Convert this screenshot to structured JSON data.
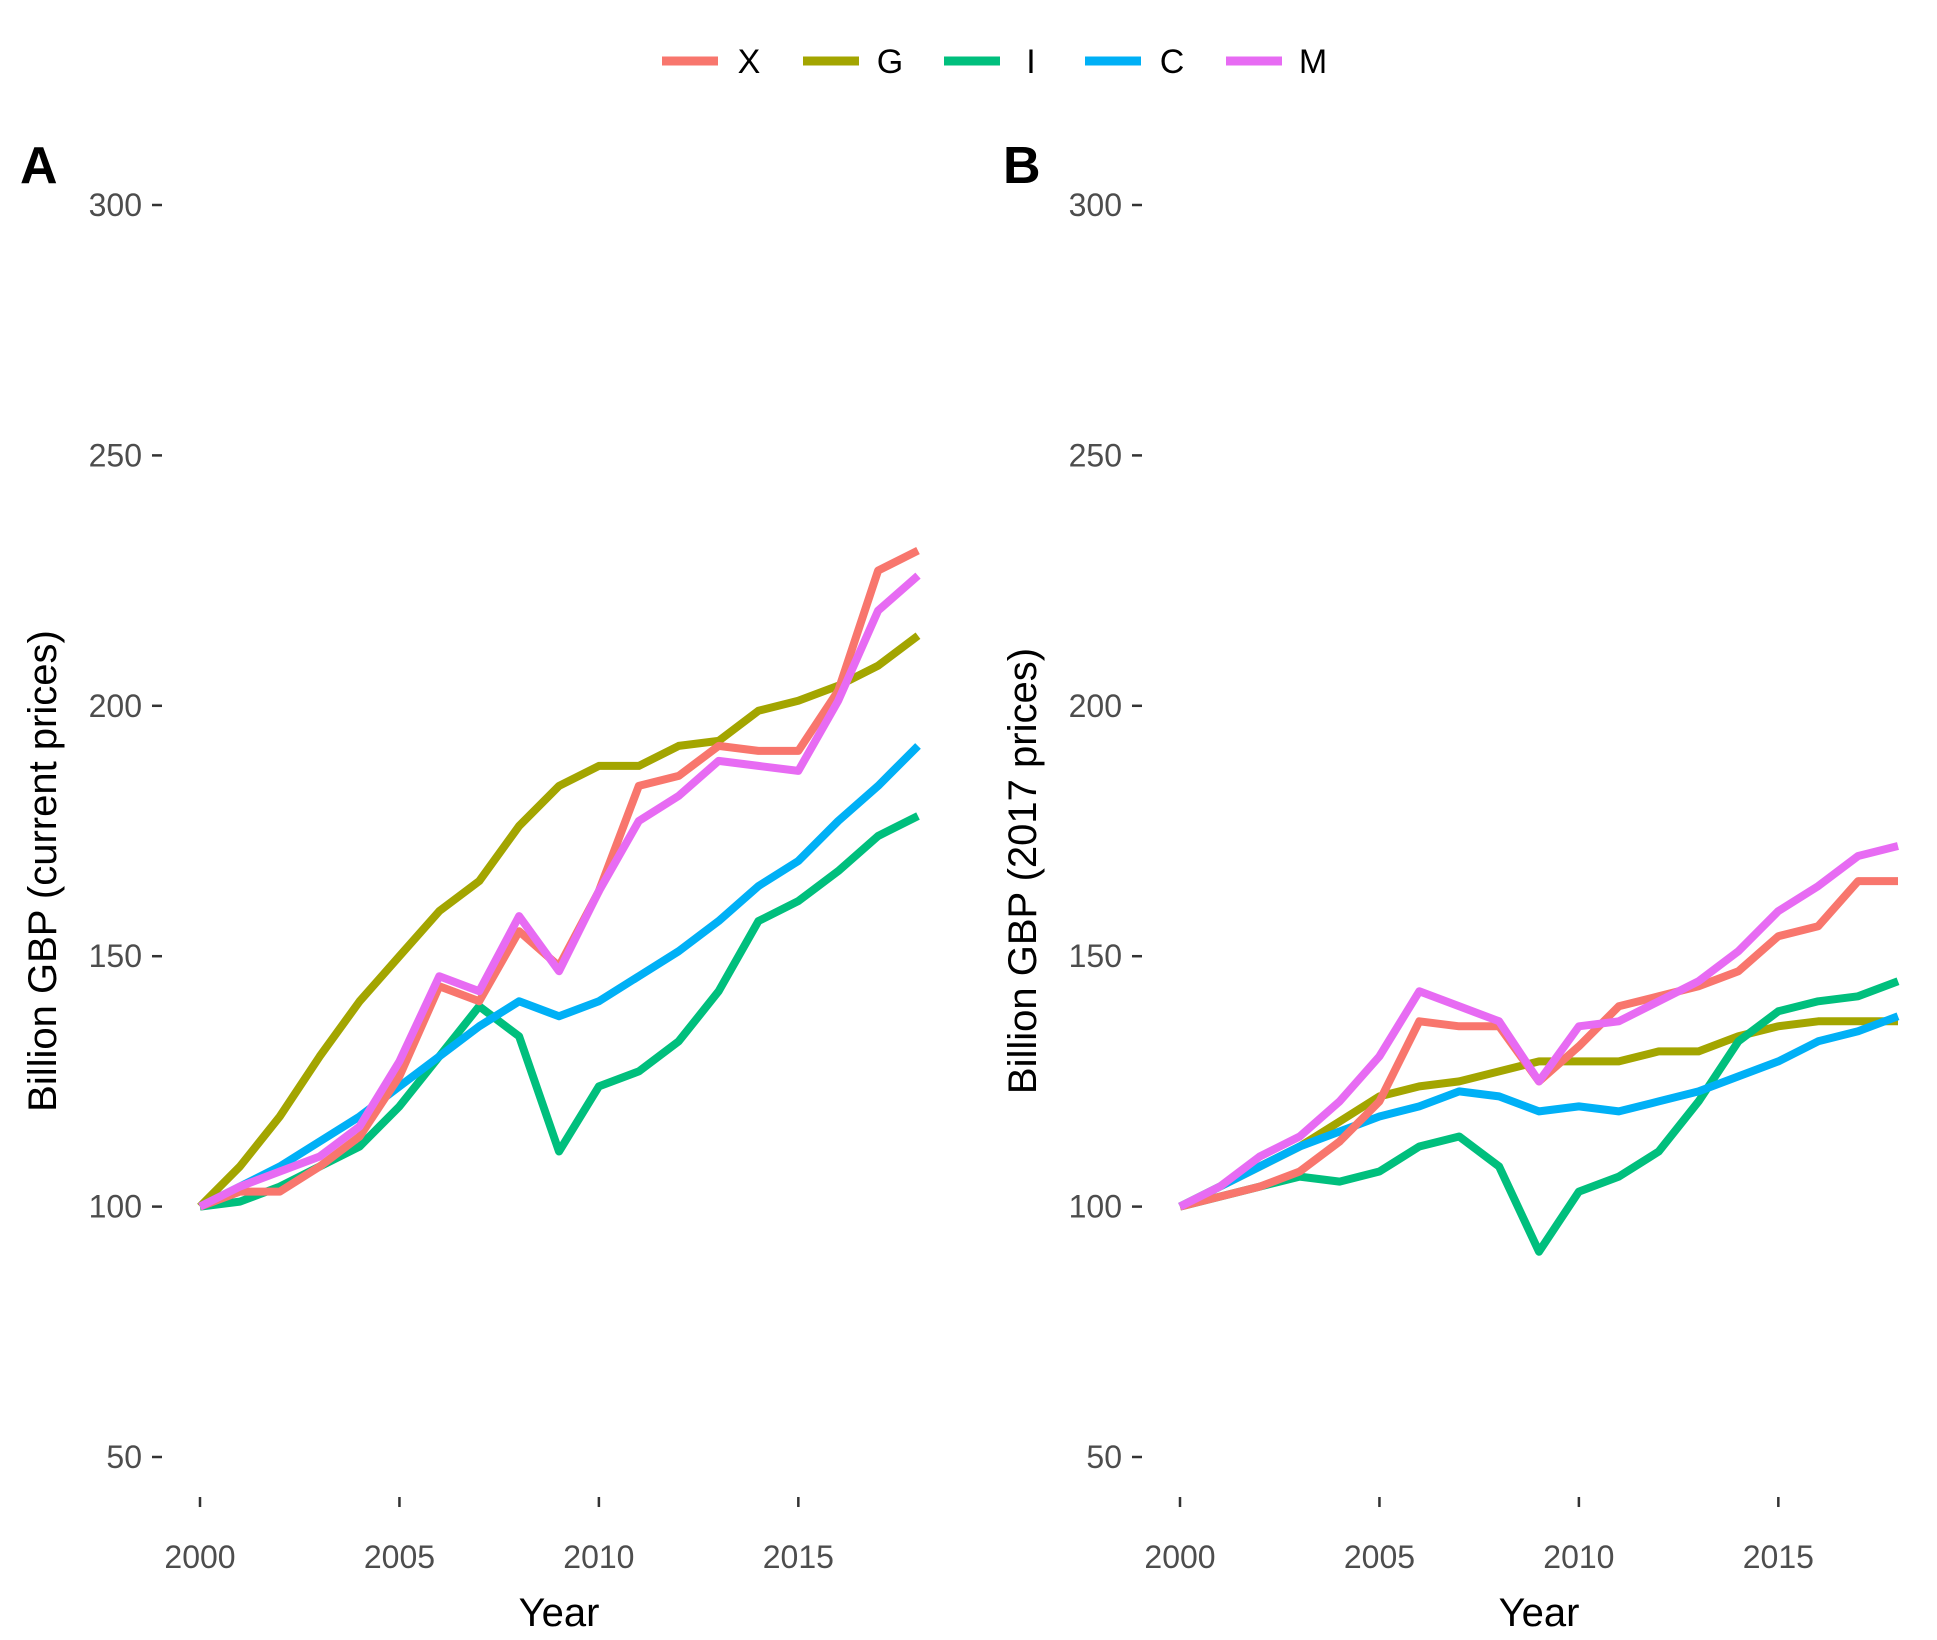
{
  "legend": {
    "position": "top",
    "entries": [
      {
        "key": "X",
        "label": "X",
        "color": "#F8766D"
      },
      {
        "key": "G",
        "label": "G",
        "color": "#A3A500"
      },
      {
        "key": "I",
        "label": "I",
        "color": "#00BF7D"
      },
      {
        "key": "C",
        "label": "C",
        "color": "#00B0F6"
      },
      {
        "key": "M",
        "label": "M",
        "color": "#E76BF3"
      }
    ]
  },
  "chart_data": [
    {
      "type": "line",
      "panel_label": "A",
      "xlabel": "Year",
      "ylabel": "Billion GBP (current prices)",
      "xlim": [
        2000,
        2018
      ],
      "ylim": [
        50,
        300
      ],
      "xticks": [
        2000,
        2005,
        2010,
        2015
      ],
      "yticks": [
        50,
        100,
        150,
        200,
        250,
        300
      ],
      "grid": false,
      "x": [
        2000,
        2001,
        2002,
        2003,
        2004,
        2005,
        2006,
        2007,
        2008,
        2009,
        2010,
        2011,
        2012,
        2013,
        2014,
        2015,
        2016,
        2017,
        2018
      ],
      "series": [
        {
          "name": "G",
          "color": "#A3A500",
          "values": [
            100,
            108,
            118,
            130,
            141,
            150,
            159,
            165,
            176,
            184,
            188,
            188,
            192,
            193,
            199,
            201,
            204,
            208,
            214
          ]
        },
        {
          "name": "I",
          "color": "#00BF7D",
          "values": [
            100,
            101,
            104,
            108,
            112,
            120,
            130,
            140,
            134,
            111,
            124,
            127,
            133,
            143,
            157,
            161,
            167,
            174,
            178
          ]
        },
        {
          "name": "C",
          "color": "#00B0F6",
          "values": [
            100,
            104,
            108,
            113,
            118,
            124,
            130,
            136,
            141,
            138,
            141,
            146,
            151,
            157,
            164,
            169,
            177,
            184,
            192
          ]
        },
        {
          "name": "X",
          "color": "#F8766D",
          "values": [
            100,
            103,
            103,
            108,
            114,
            126,
            144,
            141,
            155,
            148,
            163,
            184,
            186,
            192,
            191,
            191,
            203,
            227,
            231
          ]
        },
        {
          "name": "M",
          "color": "#E76BF3",
          "values": [
            100,
            104,
            107,
            110,
            116,
            129,
            146,
            143,
            158,
            147,
            163,
            177,
            182,
            189,
            188,
            187,
            201,
            219,
            226
          ]
        }
      ]
    },
    {
      "type": "line",
      "panel_label": "B",
      "xlabel": "Year",
      "ylabel": "Billion GBP (2017 prices)",
      "xlim": [
        2000,
        2018
      ],
      "ylim": [
        50,
        300
      ],
      "xticks": [
        2000,
        2005,
        2010,
        2015
      ],
      "yticks": [
        50,
        100,
        150,
        200,
        250,
        300
      ],
      "grid": false,
      "x": [
        2000,
        2001,
        2002,
        2003,
        2004,
        2005,
        2006,
        2007,
        2008,
        2009,
        2010,
        2011,
        2012,
        2013,
        2014,
        2015,
        2016,
        2017,
        2018
      ],
      "series": [
        {
          "name": "G",
          "color": "#A3A500",
          "values": [
            100,
            104,
            108,
            112,
            117,
            122,
            124,
            125,
            127,
            129,
            129,
            129,
            131,
            131,
            134,
            136,
            137,
            137,
            137
          ]
        },
        {
          "name": "I",
          "color": "#00BF7D",
          "values": [
            100,
            102,
            104,
            106,
            105,
            107,
            112,
            114,
            108,
            91,
            103,
            106,
            111,
            121,
            133,
            139,
            141,
            142,
            145
          ]
        },
        {
          "name": "C",
          "color": "#00B0F6",
          "values": [
            100,
            104,
            108,
            112,
            115,
            118,
            120,
            123,
            122,
            119,
            120,
            119,
            121,
            123,
            126,
            129,
            133,
            135,
            138
          ]
        },
        {
          "name": "X",
          "color": "#F8766D",
          "values": [
            100,
            102,
            104,
            107,
            113,
            121,
            137,
            136,
            136,
            125,
            132,
            140,
            142,
            144,
            147,
            154,
            156,
            165,
            165
          ]
        },
        {
          "name": "M",
          "color": "#E76BF3",
          "values": [
            100,
            104,
            110,
            114,
            121,
            130,
            143,
            140,
            137,
            125,
            136,
            137,
            141,
            145,
            151,
            159,
            164,
            170,
            172
          ]
        }
      ]
    }
  ]
}
